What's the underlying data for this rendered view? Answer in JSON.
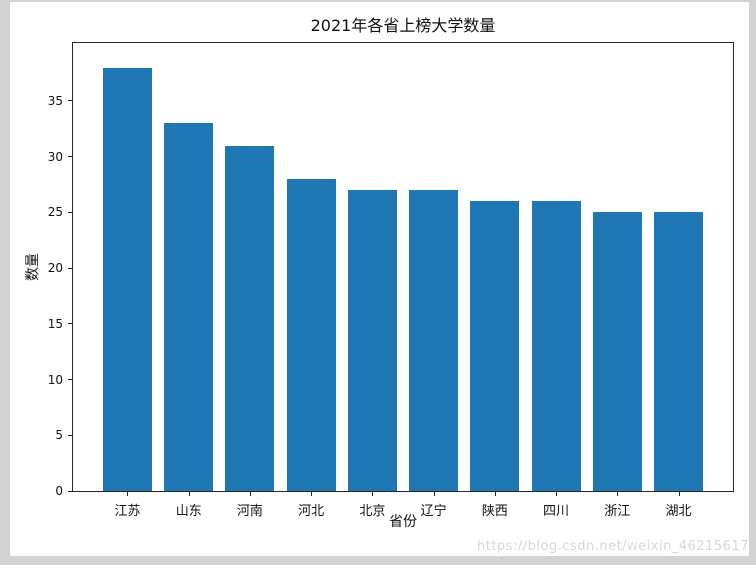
{
  "window": {
    "background": "#d2d2d2",
    "figure_background": "#ffffff"
  },
  "watermark": {
    "text": "https://blog.csdn.net/weixin_46215617",
    "color": "#d7d7d7"
  },
  "chart_data": {
    "type": "bar",
    "title": "2021年各省上榜大学数量",
    "xlabel": "省份",
    "ylabel": "数量",
    "categories": [
      "江苏",
      "山东",
      "河南",
      "河北",
      "北京",
      "辽宁",
      "陕西",
      "四川",
      "浙江",
      "湖北"
    ],
    "values": [
      38,
      33,
      31,
      28,
      27,
      27,
      26,
      26,
      25,
      25
    ],
    "yticks": [
      0,
      5,
      10,
      15,
      20,
      25,
      30,
      35
    ],
    "ylim": [
      0,
      40.2
    ],
    "xlim": [
      -0.89,
      9.89
    ],
    "bar_width": 0.8,
    "bar_color": "#1f77b4",
    "axis_color": "#262626",
    "text_color": "#111111",
    "grid": false,
    "legend": false
  }
}
